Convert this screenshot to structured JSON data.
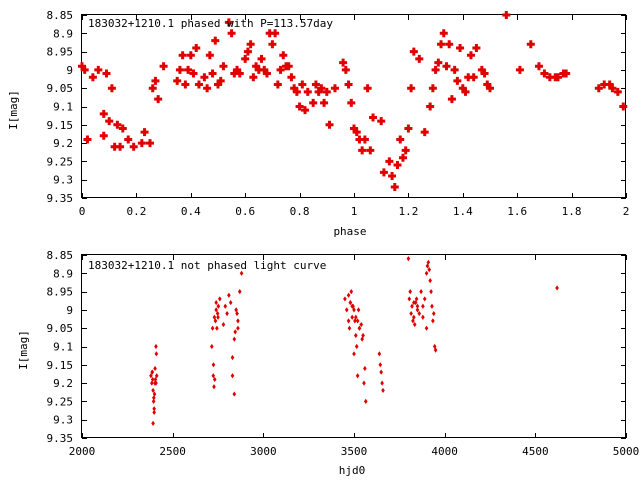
{
  "chart_data": [
    {
      "type": "scatter",
      "title": "183032+1210.1 phased with P=113.57day",
      "xlabel": "phase",
      "ylabel": "I[mag]",
      "xlim": [
        0,
        2
      ],
      "ylim": [
        9.35,
        8.85
      ],
      "y_inverted": true,
      "xticks": [
        0,
        0.2,
        0.4,
        0.6,
        0.8,
        1,
        1.2,
        1.4,
        1.6,
        1.8,
        2
      ],
      "yticks": [
        8.85,
        8.9,
        8.95,
        9,
        9.05,
        9.1,
        9.15,
        9.2,
        9.25,
        9.3,
        9.35
      ],
      "xtick_labels": [
        "0",
        "0.2",
        "0.4",
        "0.6",
        "0.8",
        "1",
        "1.2",
        "1.4",
        "1.6",
        "1.8",
        "2"
      ],
      "ytick_labels": [
        "8.85",
        "8.9",
        "8.95",
        "9",
        "9.05",
        "9.1",
        "9.15",
        "9.2",
        "9.25",
        "9.3",
        "9.35"
      ],
      "grid": false,
      "marker_color": "#e00000",
      "marker": "plus",
      "series": [
        {
          "x": [
            0.0,
            0.01,
            0.02,
            0.04,
            0.06,
            0.08,
            0.08,
            0.09,
            0.1,
            0.11,
            0.12,
            0.13,
            0.14,
            0.15,
            0.17,
            0.19,
            0.22,
            0.23,
            0.25,
            0.26,
            0.27,
            0.28,
            0.3,
            0.35,
            0.36,
            0.37,
            0.38,
            0.39,
            0.4,
            0.41,
            0.42,
            0.43,
            0.45,
            0.46,
            0.47,
            0.48,
            0.49,
            0.5,
            0.51,
            0.52,
            0.54,
            0.55,
            0.56,
            0.57,
            0.58,
            0.6,
            0.61,
            0.62,
            0.63,
            0.64,
            0.65,
            0.66,
            0.67,
            0.68,
            0.69,
            0.7,
            0.71,
            0.72,
            0.73,
            0.74,
            0.75,
            0.76,
            0.77,
            0.78,
            0.79,
            0.8,
            0.81,
            0.82,
            0.83,
            0.85,
            0.86,
            0.87,
            0.88,
            0.89,
            0.9,
            0.91,
            0.93,
            0.96,
            0.97,
            0.98,
            0.99,
            1.0,
            1.01,
            1.02,
            1.03,
            1.04,
            1.05,
            1.06,
            1.07,
            1.1,
            1.11,
            1.13,
            1.14,
            1.15,
            1.16,
            1.17,
            1.18,
            1.19,
            1.2,
            1.21,
            1.22,
            1.24,
            1.26,
            1.28,
            1.29,
            1.3,
            1.31,
            1.32,
            1.33,
            1.34,
            1.35,
            1.36,
            1.37,
            1.38,
            1.39,
            1.4,
            1.41,
            1.42,
            1.43,
            1.44,
            1.45,
            1.47,
            1.48,
            1.49,
            1.5,
            1.56,
            1.61,
            1.65,
            1.68,
            1.7,
            1.72,
            1.74,
            1.75,
            1.77,
            1.78,
            1.9,
            1.92,
            1.94,
            1.95,
            1.97,
            1.99
          ],
          "y": [
            8.99,
            9.0,
            9.19,
            9.02,
            9.0,
            9.18,
            9.12,
            9.01,
            9.14,
            9.05,
            9.21,
            9.15,
            9.21,
            9.16,
            9.19,
            9.21,
            9.2,
            9.17,
            9.2,
            9.05,
            9.03,
            9.08,
            8.99,
            9.03,
            9.0,
            8.96,
            9.04,
            9.0,
            8.96,
            9.01,
            8.94,
            9.04,
            9.02,
            9.05,
            8.96,
            9.01,
            8.92,
            9.04,
            9.03,
            8.99,
            8.87,
            8.9,
            9.01,
            9.0,
            9.01,
            8.97,
            8.95,
            8.93,
            9.02,
            8.99,
            9.0,
            8.97,
            9.0,
            9.01,
            8.9,
            8.93,
            8.9,
            9.04,
            9.0,
            8.96,
            8.99,
            8.99,
            9.02,
            9.05,
            9.06,
            9.1,
            9.04,
            9.11,
            9.06,
            9.09,
            9.04,
            9.06,
            9.05,
            9.09,
            9.06,
            9.15,
            9.05,
            8.98,
            9.0,
            9.04,
            9.09,
            9.16,
            9.17,
            9.19,
            9.22,
            9.19,
            9.05,
            9.22,
            9.13,
            9.14,
            9.28,
            9.25,
            9.29,
            9.32,
            9.26,
            9.19,
            9.24,
            9.22,
            9.16,
            9.05,
            8.95,
            8.97,
            9.17,
            9.1,
            9.05,
            9.0,
            8.98,
            8.93,
            8.9,
            8.99,
            8.93,
            9.08,
            9.0,
            9.03,
            8.94,
            9.05,
            9.06,
            9.02,
            8.96,
            9.02,
            8.94,
            9.0,
            9.01,
            9.04,
            9.05,
            8.85,
            9.0,
            8.93,
            8.99,
            9.01,
            9.02,
            9.02,
            9.02,
            9.01,
            9.01,
            9.05,
            9.04,
            9.04,
            9.05,
            9.06,
            9.1
          ]
        }
      ]
    },
    {
      "type": "scatter",
      "title": "183032+1210.1 not phased light curve",
      "xlabel": "hjd0",
      "ylabel": "I[mag]",
      "xlim": [
        2000,
        5000
      ],
      "ylim": [
        9.35,
        8.85
      ],
      "y_inverted": true,
      "xticks": [
        2000,
        2500,
        3000,
        3500,
        4000,
        4500,
        5000
      ],
      "yticks": [
        8.85,
        8.9,
        8.95,
        9,
        9.05,
        9.1,
        9.15,
        9.2,
        9.25,
        9.3,
        9.35
      ],
      "xtick_labels": [
        "2000",
        "2500",
        "3000",
        "3500",
        "4000",
        "4500",
        "5000"
      ],
      "ytick_labels": [
        "8.85",
        "8.9",
        "8.95",
        "9",
        "9.05",
        "9.1",
        "9.15",
        "9.2",
        "9.25",
        "9.3",
        "9.35"
      ],
      "grid": false,
      "marker_color": "#e00000",
      "marker": "diamond",
      "series": [
        {
          "x": [
            2380,
            2385,
            2388,
            2390,
            2392,
            2395,
            2398,
            2400,
            2402,
            2405,
            2408,
            2410,
            2412,
            2392,
            2398,
            2403,
            2396,
            2408,
            2387,
            2716,
            2720,
            2724,
            2728,
            2732,
            2736,
            2740,
            2744,
            2748,
            2752,
            2725,
            2730,
            2740,
            2750,
            2760,
            2780,
            2790,
            2800,
            2810,
            2820,
            2830,
            2840,
            2850,
            2860,
            2870,
            2880,
            2830,
            2840,
            2860,
            2845,
            2855,
            3450,
            3460,
            3470,
            3475,
            3480,
            3485,
            3490,
            3495,
            3500,
            3505,
            3510,
            3515,
            3520,
            3525,
            3530,
            3540,
            3550,
            3560,
            3470,
            3490,
            3510,
            3530,
            3545,
            3555,
            3565,
            3500,
            3520,
            3480,
            3640,
            3645,
            3650,
            3655,
            3660,
            3800,
            3805,
            3810,
            3815,
            3820,
            3825,
            3830,
            3835,
            3840,
            3845,
            3850,
            3860,
            3870,
            3880,
            3890,
            3900,
            3905,
            3910,
            3915,
            3920,
            3925,
            3930,
            3935,
            3940,
            3945,
            3950,
            3830,
            3850,
            3880,
            3900,
            4620
          ],
          "y": [
            9.18,
            9.2,
            9.17,
            9.19,
            9.22,
            9.25,
            9.27,
            9.23,
            9.2,
            9.19,
            9.1,
            9.12,
            9.18,
            9.31,
            9.28,
            9.16,
            9.24,
            9.2,
            9.17,
            9.1,
            9.05,
            9.18,
            9.21,
            9.19,
            9.03,
            9.0,
            9.05,
            9.01,
            8.99,
            9.15,
            9.02,
            8.98,
            9.02,
            8.97,
            9.04,
            8.99,
            9.01,
            8.96,
            8.98,
            9.13,
            9.08,
            9.0,
            9.05,
            8.95,
            8.9,
            9.18,
            9.23,
            9.03,
            9.06,
            9.01,
            8.97,
            9.0,
            9.03,
            9.05,
            8.98,
            8.95,
            9.02,
            8.99,
            9.0,
            9.03,
            9.07,
            9.1,
            9.03,
            9.0,
            9.05,
            9.04,
            9.07,
            9.16,
            8.96,
            8.99,
            9.02,
            9.05,
            9.08,
            9.2,
            9.25,
            9.12,
            9.18,
            8.98,
            9.12,
            9.15,
            9.17,
            9.2,
            9.22,
            8.86,
            8.97,
            8.95,
            9.01,
            8.99,
            9.03,
            9.02,
            9.04,
            8.98,
            8.97,
            8.99,
            9.01,
            8.95,
            8.99,
            8.97,
            8.9,
            8.88,
            8.87,
            8.89,
            8.92,
            8.95,
            8.99,
            9.03,
            9.01,
            9.1,
            9.11,
            8.98,
            9.0,
            9.02,
            9.05,
            8.94
          ]
        }
      ]
    }
  ]
}
